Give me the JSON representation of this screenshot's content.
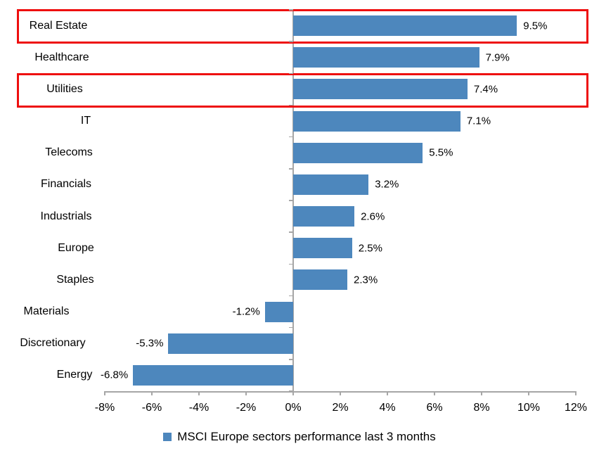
{
  "chart_data": {
    "type": "bar",
    "orientation": "horizontal",
    "categories": [
      "Real Estate",
      "Healthcare",
      "Utilities",
      "IT",
      "Telecoms",
      "Financials",
      "Industrials",
      "Europe",
      "Staples",
      "Materials",
      "Discretionary",
      "Energy"
    ],
    "values": [
      9.5,
      7.9,
      7.4,
      7.1,
      5.5,
      3.2,
      2.6,
      2.5,
      2.3,
      -1.2,
      -5.3,
      -6.8
    ],
    "data_labels": [
      "9.5%",
      "7.9%",
      "7.4%",
      "7.1%",
      "5.5%",
      "3.2%",
      "2.6%",
      "2.5%",
      "2.3%",
      "-1.2%",
      "-5.3%",
      "-6.8%"
    ],
    "x_ticks": [
      "-8%",
      "-6%",
      "-4%",
      "-2%",
      "0%",
      "2%",
      "4%",
      "6%",
      "8%",
      "10%",
      "12%"
    ],
    "xlim": [
      -8,
      12
    ],
    "grid": false,
    "series_name": "MSCI Europe sectors performance last 3 months",
    "legend_position": "bottom",
    "highlighted_categories": [
      "Real Estate",
      "Utilities"
    ],
    "colors": {
      "bar": "#4d87bd",
      "axis": "#a6a6a6",
      "highlight_box": "#ee0f0f",
      "text": "#000000",
      "background": "#ffffff"
    }
  },
  "legend": {
    "label": "MSCI Europe sectors performance last 3 months"
  }
}
